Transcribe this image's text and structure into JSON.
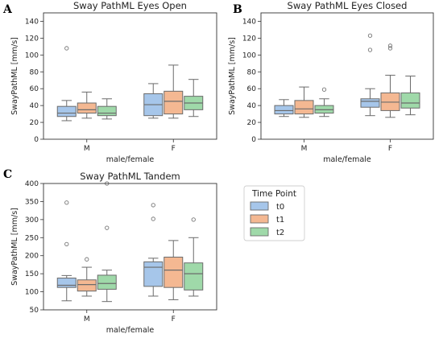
{
  "chart_data": [
    {
      "type": "box",
      "panel": "A",
      "title": "Sway PathML Eyes Open",
      "xlabel": "male/female",
      "ylabel": "SwayPathML [mm/s]",
      "ylim": [
        0,
        150
      ],
      "yticks": [
        0,
        20,
        40,
        60,
        80,
        100,
        120,
        140
      ],
      "categories": [
        "M",
        "F"
      ],
      "series": [
        {
          "name": "t0",
          "boxes": [
            {
              "whislo": 22,
              "q1": 27,
              "med": 31,
              "q3": 39,
              "whishi": 46,
              "fliers": [
                108
              ]
            },
            {
              "whislo": 25,
              "q1": 28,
              "med": 41,
              "q3": 54,
              "whishi": 66,
              "fliers": []
            }
          ]
        },
        {
          "name": "t1",
          "boxes": [
            {
              "whislo": 25,
              "q1": 31,
              "med": 35,
              "q3": 43,
              "whishi": 56,
              "fliers": []
            },
            {
              "whislo": 25,
              "q1": 30,
              "med": 45,
              "q3": 57,
              "whishi": 88,
              "fliers": []
            }
          ]
        },
        {
          "name": "t2",
          "boxes": [
            {
              "whislo": 24,
              "q1": 28,
              "med": 31,
              "q3": 39,
              "whishi": 48,
              "fliers": []
            },
            {
              "whislo": 27,
              "q1": 35,
              "med": 43,
              "q3": 51,
              "whishi": 71,
              "fliers": []
            }
          ]
        }
      ]
    },
    {
      "type": "box",
      "panel": "B",
      "title": "Sway PathML Eyes Closed",
      "xlabel": "male/female",
      "ylabel": "SwayPathML [mm/s]",
      "ylim": [
        0,
        150
      ],
      "yticks": [
        0,
        20,
        40,
        60,
        80,
        100,
        120,
        140
      ],
      "categories": [
        "M",
        "F"
      ],
      "series": [
        {
          "name": "t0",
          "boxes": [
            {
              "whislo": 27,
              "q1": 30,
              "med": 34,
              "q3": 40,
              "whishi": 47,
              "fliers": []
            },
            {
              "whislo": 28,
              "q1": 38,
              "med": 45,
              "q3": 48,
              "whishi": 60,
              "fliers": [
                106,
                123
              ]
            }
          ]
        },
        {
          "name": "t1",
          "boxes": [
            {
              "whislo": 26,
              "q1": 30,
              "med": 36,
              "q3": 46,
              "whishi": 62,
              "fliers": []
            },
            {
              "whislo": 26,
              "q1": 34,
              "med": 44,
              "q3": 55,
              "whishi": 76,
              "fliers": [
                108,
                111
              ]
            }
          ]
        },
        {
          "name": "t2",
          "boxes": [
            {
              "whislo": 27,
              "q1": 31,
              "med": 35,
              "q3": 40,
              "whishi": 48,
              "fliers": [
                59
              ]
            },
            {
              "whislo": 29,
              "q1": 37,
              "med": 43,
              "q3": 55,
              "whishi": 75,
              "fliers": []
            }
          ]
        }
      ]
    },
    {
      "type": "box",
      "panel": "C",
      "title": "Sway PathML Tandem",
      "xlabel": "male/female",
      "ylabel": "SwayPathML [mm/s]",
      "ylim": [
        50,
        400
      ],
      "yticks": [
        50,
        100,
        150,
        200,
        250,
        300,
        350,
        400
      ],
      "categories": [
        "M",
        "F"
      ],
      "series": [
        {
          "name": "t0",
          "boxes": [
            {
              "whislo": 75,
              "q1": 112,
              "med": 118,
              "q3": 138,
              "whishi": 145,
              "fliers": [
                232,
                347
              ]
            },
            {
              "whislo": 88,
              "q1": 115,
              "med": 168,
              "q3": 183,
              "whishi": 193,
              "fliers": [
                302,
                340
              ]
            }
          ]
        },
        {
          "name": "t1",
          "boxes": [
            {
              "whislo": 88,
              "q1": 102,
              "med": 120,
              "q3": 133,
              "whishi": 168,
              "fliers": [
                190
              ]
            },
            {
              "whislo": 78,
              "q1": 112,
              "med": 160,
              "q3": 196,
              "whishi": 242,
              "fliers": []
            }
          ]
        },
        {
          "name": "t2",
          "boxes": [
            {
              "whislo": 73,
              "q1": 107,
              "med": 123,
              "q3": 146,
              "whishi": 160,
              "fliers": [
                277,
                400
              ]
            },
            {
              "whislo": 88,
              "q1": 105,
              "med": 150,
              "q3": 180,
              "whishi": 250,
              "fliers": [
                300
              ]
            }
          ]
        }
      ]
    }
  ],
  "legend": {
    "title": "Time Point",
    "items": [
      "t0",
      "t1",
      "t2"
    ]
  },
  "colors": {
    "t0": "#a6c6ea",
    "t1": "#f4b892",
    "t2": "#9fd9a9",
    "line": "#6b6b6b",
    "axis": "#333333"
  }
}
